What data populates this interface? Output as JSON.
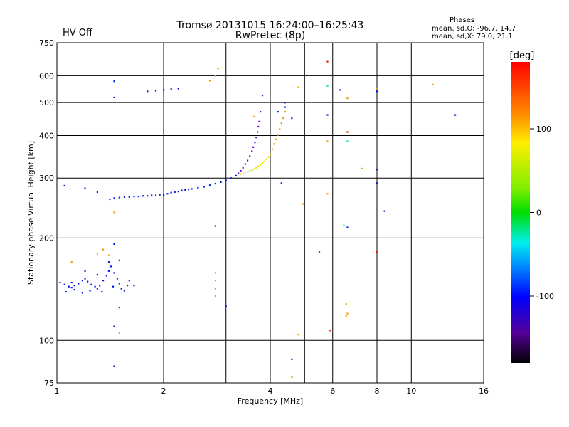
{
  "header": {
    "status": "HV Off",
    "status_color": "#cc0000",
    "title_line1": "Tromsø 20131015 16:24:00–16:25:43",
    "title_line2": "RwPretec (8p)",
    "stats_title": "Phases",
    "stats_o": "mean, sd,O: -96.7, 14.7",
    "stats_x": "mean, sd,X:  79.0, 21.1"
  },
  "chart_data": {
    "type": "scatter",
    "xlabel": "Frequency [MHz]",
    "ylabel": "Stationary phase Virtual Height [km]",
    "x_scale": "log",
    "y_scale": "log",
    "xlim": [
      1,
      16
    ],
    "ylim": [
      75,
      750
    ],
    "x_ticks": [
      1,
      2,
      4,
      6,
      8,
      10,
      16
    ],
    "y_ticks": [
      75,
      100,
      200,
      300,
      400,
      500,
      600,
      750
    ],
    "x_gridlines": [
      2,
      3,
      4,
      5,
      6,
      8,
      10
    ],
    "y_gridlines": [
      100,
      200,
      300,
      400,
      500,
      600
    ],
    "grid": true,
    "colorbar": {
      "label": "[deg]",
      "range": [
        -180,
        180
      ],
      "ticks": [
        100,
        0,
        -100
      ],
      "placement": "right"
    },
    "series": [
      {
        "mode": "O",
        "color_value": -100,
        "points": [
          {
            "x": 1.41,
            "y": 260
          },
          {
            "x": 1.45,
            "y": 262
          },
          {
            "x": 1.5,
            "y": 263
          },
          {
            "x": 1.55,
            "y": 264
          },
          {
            "x": 1.6,
            "y": 264
          },
          {
            "x": 1.65,
            "y": 265
          },
          {
            "x": 1.7,
            "y": 265
          },
          {
            "x": 1.75,
            "y": 266
          },
          {
            "x": 1.8,
            "y": 266
          },
          {
            "x": 1.85,
            "y": 267
          },
          {
            "x": 1.9,
            "y": 267
          },
          {
            "x": 1.95,
            "y": 268
          },
          {
            "x": 2.0,
            "y": 268
          },
          {
            "x": 2.05,
            "y": 270
          },
          {
            "x": 2.1,
            "y": 272
          },
          {
            "x": 2.15,
            "y": 273
          },
          {
            "x": 2.2,
            "y": 274
          },
          {
            "x": 2.25,
            "y": 276
          },
          {
            "x": 2.3,
            "y": 277
          },
          {
            "x": 2.35,
            "y": 278
          },
          {
            "x": 2.4,
            "y": 279
          },
          {
            "x": 2.5,
            "y": 281
          },
          {
            "x": 2.6,
            "y": 283
          },
          {
            "x": 2.7,
            "y": 286
          },
          {
            "x": 2.8,
            "y": 289
          },
          {
            "x": 2.9,
            "y": 292
          },
          {
            "x": 3.0,
            "y": 295
          },
          {
            "x": 3.1,
            "y": 300
          },
          {
            "x": 3.2,
            "y": 305
          },
          {
            "x": 1.2,
            "y": 280
          },
          {
            "x": 1.3,
            "y": 273
          },
          {
            "x": 1.05,
            "y": 285
          },
          {
            "x": 1.45,
            "y": 518
          },
          {
            "x": 1.45,
            "y": 578
          },
          {
            "x": 1.8,
            "y": 540
          },
          {
            "x": 1.9,
            "y": 542
          },
          {
            "x": 2.0,
            "y": 545
          },
          {
            "x": 2.1,
            "y": 548
          },
          {
            "x": 2.2,
            "y": 550
          },
          {
            "x": 1.02,
            "y": 148
          },
          {
            "x": 1.05,
            "y": 146
          },
          {
            "x": 1.08,
            "y": 144
          },
          {
            "x": 1.1,
            "y": 143
          },
          {
            "x": 1.12,
            "y": 145
          },
          {
            "x": 1.15,
            "y": 147
          },
          {
            "x": 1.18,
            "y": 150
          },
          {
            "x": 1.2,
            "y": 152
          },
          {
            "x": 1.22,
            "y": 149
          },
          {
            "x": 1.25,
            "y": 146
          },
          {
            "x": 1.28,
            "y": 144
          },
          {
            "x": 1.3,
            "y": 142
          },
          {
            "x": 1.32,
            "y": 145
          },
          {
            "x": 1.35,
            "y": 150
          },
          {
            "x": 1.38,
            "y": 155
          },
          {
            "x": 1.4,
            "y": 160
          },
          {
            "x": 1.42,
            "y": 165
          },
          {
            "x": 1.45,
            "y": 158
          },
          {
            "x": 1.48,
            "y": 152
          },
          {
            "x": 1.5,
            "y": 147
          },
          {
            "x": 1.52,
            "y": 142
          },
          {
            "x": 1.55,
            "y": 140
          },
          {
            "x": 1.58,
            "y": 145
          },
          {
            "x": 1.6,
            "y": 150
          },
          {
            "x": 1.65,
            "y": 145
          },
          {
            "x": 1.06,
            "y": 139
          },
          {
            "x": 1.12,
            "y": 141
          },
          {
            "x": 1.18,
            "y": 138
          },
          {
            "x": 1.24,
            "y": 140
          },
          {
            "x": 1.34,
            "y": 139
          },
          {
            "x": 1.44,
            "y": 144
          },
          {
            "x": 1.5,
            "y": 172
          },
          {
            "x": 1.4,
            "y": 170
          },
          {
            "x": 1.3,
            "y": 156
          },
          {
            "x": 1.2,
            "y": 160
          },
          {
            "x": 1.45,
            "y": 192
          },
          {
            "x": 1.45,
            "y": 110
          },
          {
            "x": 1.5,
            "y": 125
          },
          {
            "x": 1.45,
            "y": 84
          },
          {
            "x": 1.1,
            "y": 148
          },
          {
            "x": 4.3,
            "y": 290
          },
          {
            "x": 4.6,
            "y": 88
          },
          {
            "x": 5.8,
            "y": 460
          },
          {
            "x": 6.6,
            "y": 215
          },
          {
            "x": 6.3,
            "y": 545
          },
          {
            "x": 8.0,
            "y": 540
          },
          {
            "x": 8.0,
            "y": 318
          },
          {
            "x": 8.0,
            "y": 290
          },
          {
            "x": 8.4,
            "y": 240
          },
          {
            "x": 13.3,
            "y": 460
          },
          {
            "x": 2.8,
            "y": 217
          },
          {
            "x": 3.0,
            "y": 126
          },
          {
            "x": 4.4,
            "y": 485
          },
          {
            "x": 4.6,
            "y": 450
          },
          {
            "x": 4.2,
            "y": 470
          }
        ]
      },
      {
        "mode": "O",
        "color_value": -140,
        "points": [
          {
            "x": 3.25,
            "y": 310
          },
          {
            "x": 3.3,
            "y": 315
          },
          {
            "x": 3.35,
            "y": 322
          },
          {
            "x": 3.4,
            "y": 330
          },
          {
            "x": 3.45,
            "y": 338
          },
          {
            "x": 3.5,
            "y": 348
          },
          {
            "x": 3.55,
            "y": 360
          },
          {
            "x": 3.58,
            "y": 370
          },
          {
            "x": 3.62,
            "y": 382
          },
          {
            "x": 3.65,
            "y": 395
          },
          {
            "x": 3.68,
            "y": 410
          },
          {
            "x": 3.7,
            "y": 425
          },
          {
            "x": 3.72,
            "y": 440
          },
          {
            "x": 3.75,
            "y": 470
          },
          {
            "x": 3.8,
            "y": 525
          },
          {
            "x": 4.4,
            "y": 500
          }
        ]
      },
      {
        "mode": "X",
        "color_value": 110,
        "points": [
          {
            "x": 3.3,
            "y": 308
          },
          {
            "x": 3.35,
            "y": 310
          },
          {
            "x": 3.4,
            "y": 312
          },
          {
            "x": 3.45,
            "y": 313
          },
          {
            "x": 3.5,
            "y": 315
          },
          {
            "x": 3.55,
            "y": 317
          },
          {
            "x": 3.6,
            "y": 319
          },
          {
            "x": 3.65,
            "y": 322
          },
          {
            "x": 3.7,
            "y": 325
          },
          {
            "x": 3.75,
            "y": 328
          },
          {
            "x": 3.8,
            "y": 332
          },
          {
            "x": 3.85,
            "y": 336
          },
          {
            "x": 3.9,
            "y": 341
          },
          {
            "x": 3.95,
            "y": 346
          },
          {
            "x": 4.0,
            "y": 352
          }
        ]
      },
      {
        "mode": "X",
        "color_value": 130,
        "points": [
          {
            "x": 4.05,
            "y": 365
          },
          {
            "x": 4.1,
            "y": 378
          },
          {
            "x": 4.15,
            "y": 390
          },
          {
            "x": 4.2,
            "y": 402
          },
          {
            "x": 4.25,
            "y": 418
          },
          {
            "x": 4.3,
            "y": 435
          },
          {
            "x": 4.35,
            "y": 450
          },
          {
            "x": 4.4,
            "y": 470
          },
          {
            "x": 2.8,
            "y": 600
          },
          {
            "x": 2.7,
            "y": 580
          },
          {
            "x": 2.85,
            "y": 630
          },
          {
            "x": 2.8,
            "y": 158
          },
          {
            "x": 2.8,
            "y": 150
          },
          {
            "x": 2.8,
            "y": 142
          },
          {
            "x": 2.8,
            "y": 135
          },
          {
            "x": 1.35,
            "y": 185
          },
          {
            "x": 1.4,
            "y": 178
          },
          {
            "x": 1.5,
            "y": 105
          },
          {
            "x": 1.45,
            "y": 238
          },
          {
            "x": 1.3,
            "y": 180
          },
          {
            "x": 4.6,
            "y": 78
          },
          {
            "x": 4.8,
            "y": 104
          },
          {
            "x": 4.8,
            "y": 555
          },
          {
            "x": 4.95,
            "y": 252
          },
          {
            "x": 5.8,
            "y": 270
          },
          {
            "x": 5.8,
            "y": 385
          },
          {
            "x": 6.55,
            "y": 128
          },
          {
            "x": 6.55,
            "y": 118
          },
          {
            "x": 6.6,
            "y": 120
          },
          {
            "x": 6.6,
            "y": 515
          },
          {
            "x": 7.25,
            "y": 320
          },
          {
            "x": 8.0,
            "y": 550
          },
          {
            "x": 11.5,
            "y": 565
          },
          {
            "x": 2.0,
            "y": 515
          },
          {
            "x": 1.1,
            "y": 170
          },
          {
            "x": 3.6,
            "y": 455
          }
        ]
      },
      {
        "mode": "X",
        "color_value": 170,
        "points": [
          {
            "x": 5.8,
            "y": 660
          },
          {
            "x": 5.5,
            "y": 182
          },
          {
            "x": 5.9,
            "y": 107
          },
          {
            "x": 6.6,
            "y": 410
          },
          {
            "x": 8.0,
            "y": 182
          }
        ]
      },
      {
        "mode": "X",
        "color_value": -20,
        "points": [
          {
            "x": 5.8,
            "y": 560
          },
          {
            "x": 6.6,
            "y": 385
          },
          {
            "x": 6.45,
            "y": 218
          }
        ]
      }
    ]
  }
}
